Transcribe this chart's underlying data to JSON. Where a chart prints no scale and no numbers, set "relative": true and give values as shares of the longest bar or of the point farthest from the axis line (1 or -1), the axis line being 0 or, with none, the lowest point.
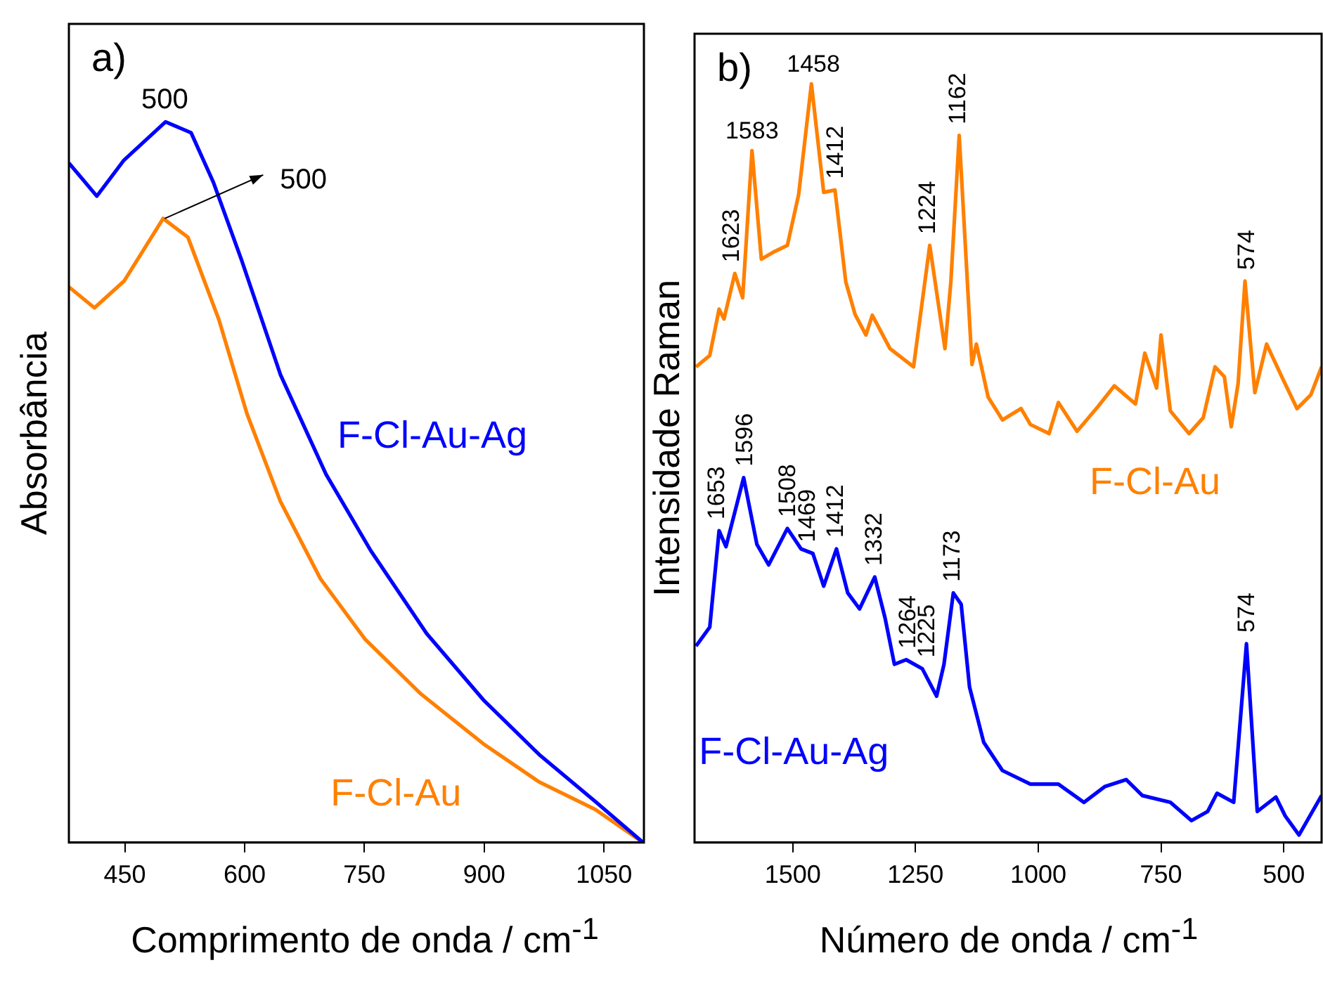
{
  "chart_data": [
    {
      "type": "line",
      "relative": true,
      "xlabel": "Comprimento de onda / cm$^{-1}$",
      "ylabel": "Absorbância",
      "xlim": [
        380,
        1100
      ],
      "xticks": [
        450,
        600,
        750,
        900,
        1050
      ],
      "annotations": [
        "a)",
        {
          "text": "500",
          "x": 500,
          "y": 1.0
        },
        {
          "text": "500",
          "x": 500,
          "y": 0.866
        }
      ],
      "series": [
        {
          "name": "F-Cl-Au-Ag",
          "color": "#0000ff",
          "x": [
            380,
            415,
            449,
            501,
            533,
            561,
            596,
            645,
            702,
            758,
            828,
            899,
            969,
            1039,
            1099
          ],
          "values": [
            0.943,
            0.897,
            0.947,
            1.0,
            0.985,
            0.916,
            0.809,
            0.649,
            0.511,
            0.405,
            0.29,
            0.198,
            0.122,
            0.057,
            0
          ]
        },
        {
          "name": "F-Cl-Au",
          "color": "#ff8000",
          "x": [
            380,
            412,
            449,
            498,
            529,
            568,
            603,
            645,
            695,
            751,
            821,
            899,
            969,
            1039,
            1099
          ],
          "values": [
            0.771,
            0.742,
            0.779,
            0.866,
            0.84,
            0.725,
            0.595,
            0.473,
            0.366,
            0.282,
            0.206,
            0.137,
            0.084,
            0.046,
            0
          ]
        }
      ]
    },
    {
      "type": "line",
      "relative": true,
      "xlabel": "Número de onda / cm$^{-1}$",
      "ylabel": "Intensidade Raman",
      "xlim": [
        1700,
        423
      ],
      "xticks": [
        1500,
        1250,
        1000,
        750,
        500
      ],
      "annotations": [
        "b)",
        {
          "text": "1623",
          "x": 1623,
          "y": 0.75
        },
        {
          "text": "1583",
          "x": 1583,
          "y": 0.912
        },
        {
          "text": "1458",
          "x": 1458,
          "y": 1.0
        },
        {
          "text": "1412",
          "x": 1412,
          "y": 0.86
        },
        {
          "text": "1224",
          "x": 1224,
          "y": 0.787
        },
        {
          "text": "1162",
          "x": 1162,
          "y": 0.932
        },
        {
          "text": "574",
          "x": 574,
          "y": 0.74
        },
        {
          "text": "1653",
          "x": 1653,
          "y": 0.411
        },
        {
          "text": "1596",
          "x": 1596,
          "y": 0.481
        },
        {
          "text": "1508",
          "x": 1508,
          "y": 0.414
        },
        {
          "text": "1469",
          "x": 1469,
          "y": 0.381
        },
        {
          "text": "1412",
          "x": 1412,
          "y": 0.387
        },
        {
          "text": "1332",
          "x": 1332,
          "y": 0.35
        },
        {
          "text": "1264",
          "x": 1264,
          "y": 0.241
        },
        {
          "text": "1225",
          "x": 1225,
          "y": 0.229
        },
        {
          "text": "1173",
          "x": 1173,
          "y": 0.329
        },
        {
          "text": "574",
          "x": 574,
          "y": 0.262
        }
      ],
      "series": [
        {
          "name": "F-Cl-Au",
          "color": "#ff8000",
          "x": [
            1697,
            1669,
            1650,
            1640,
            1618,
            1602,
            1583,
            1564,
            1540,
            1511,
            1488,
            1462,
            1437,
            1414,
            1392,
            1373,
            1351,
            1338,
            1302,
            1254,
            1221,
            1190,
            1178,
            1161,
            1135,
            1126,
            1102,
            1073,
            1035,
            1016,
            978,
            959,
            921,
            878,
            845,
            802,
            783,
            759,
            750,
            731,
            693,
            664,
            640,
            621,
            607,
            593,
            579,
            559,
            535,
            502,
            473,
            445,
            423
          ],
          "values": [
            0.627,
            0.642,
            0.703,
            0.69,
            0.75,
            0.718,
            0.912,
            0.769,
            0.778,
            0.787,
            0.854,
            1.0,
            0.857,
            0.86,
            0.739,
            0.696,
            0.669,
            0.695,
            0.651,
            0.627,
            0.787,
            0.651,
            0.739,
            0.932,
            0.63,
            0.657,
            0.587,
            0.557,
            0.572,
            0.551,
            0.539,
            0.58,
            0.542,
            0.575,
            0.602,
            0.578,
            0.645,
            0.599,
            0.669,
            0.569,
            0.539,
            0.56,
            0.627,
            0.614,
            0.548,
            0.605,
            0.74,
            0.593,
            0.657,
            0.611,
            0.572,
            0.59,
            0.627
          ]
        },
        {
          "name": "F-Cl-Au-Ag",
          "color": "#0000ff",
          "x": [
            1697,
            1669,
            1650,
            1636,
            1600,
            1573,
            1549,
            1511,
            1483,
            1459,
            1437,
            1411,
            1388,
            1364,
            1333,
            1312,
            1293,
            1269,
            1236,
            1207,
            1192,
            1173,
            1157,
            1140,
            1111,
            1073,
            1016,
            959,
            907,
            864,
            821,
            788,
            731,
            688,
            655,
            636,
            602,
            576,
            554,
            516,
            497,
            469,
            423
          ],
          "values": [
            0.259,
            0.284,
            0.411,
            0.39,
            0.481,
            0.393,
            0.366,
            0.414,
            0.387,
            0.381,
            0.338,
            0.387,
            0.329,
            0.308,
            0.35,
            0.296,
            0.235,
            0.241,
            0.229,
            0.193,
            0.235,
            0.329,
            0.314,
            0.205,
            0.132,
            0.095,
            0.077,
            0.077,
            0.053,
            0.074,
            0.083,
            0.062,
            0.053,
            0.029,
            0.041,
            0.065,
            0.053,
            0.262,
            0.041,
            0.06,
            0.035,
            0.01,
            0.062
          ]
        }
      ]
    }
  ]
}
